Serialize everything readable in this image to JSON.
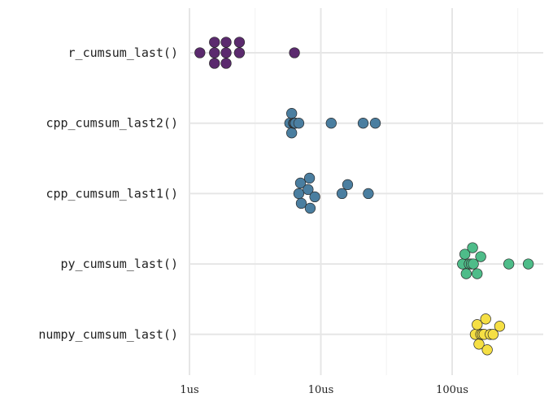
{
  "chart_data": {
    "type": "scatter",
    "x_scale": "log",
    "x_unit": "us",
    "x_range": [
      0.65,
      600
    ],
    "grid": true,
    "x_ticks": [
      {
        "value": 1,
        "label": "1us"
      },
      {
        "value": 10,
        "label": "10us"
      },
      {
        "value": 100,
        "label": "100us"
      }
    ],
    "x_minor_ticks": [
      3.16,
      31.6,
      316
    ],
    "categories": [
      "r_cumsum_last()",
      "cpp_cumsum_last2()",
      "cpp_cumsum_last1()",
      "py_cumsum_last()",
      "numpy_cumsum_last()"
    ],
    "series": [
      {
        "category": "r_cumsum_last()",
        "color": "#5b2a6e",
        "values": [
          1.2,
          1.55,
          1.55,
          1.55,
          1.9,
          1.9,
          1.9,
          2.4,
          2.4,
          6.3
        ]
      },
      {
        "category": "cpp_cumsum_last2()",
        "color": "#4a7ea0",
        "values": [
          5.8,
          6.0,
          6.0,
          6.2,
          6.3,
          6.3,
          6.3,
          6.4,
          6.8,
          12,
          21,
          26
        ]
      },
      {
        "category": "cpp_cumsum_last1()",
        "color": "#4a7ea0",
        "values": [
          6.8,
          7.0,
          7.1,
          8.0,
          8.2,
          8.3,
          9.0,
          14.5,
          16,
          23
        ]
      },
      {
        "category": "py_cumsum_last()",
        "color": "#4ebc89",
        "values": [
          120,
          125,
          128,
          135,
          140,
          143,
          145,
          155,
          165,
          270,
          380
        ]
      },
      {
        "category": "numpy_cumsum_last()",
        "color": "#f5df44",
        "values": [
          150,
          155,
          160,
          165,
          170,
          175,
          180,
          185,
          195,
          205,
          230
        ]
      }
    ]
  }
}
